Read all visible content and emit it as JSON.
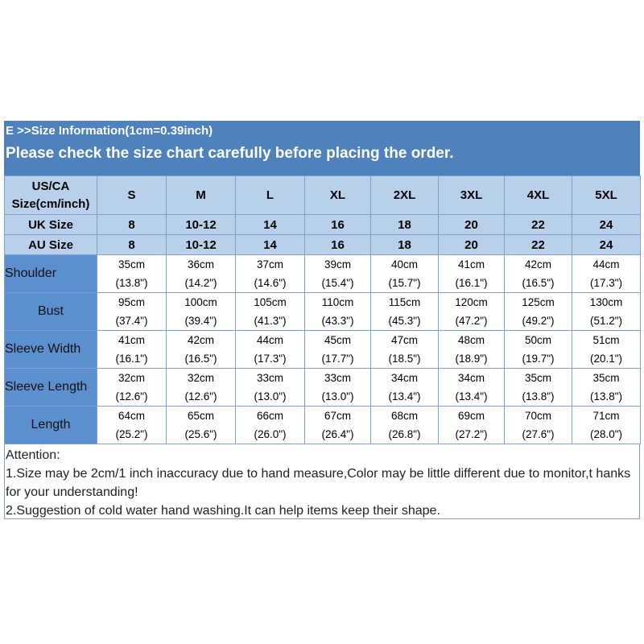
{
  "title": "E >>Size Information(1cm=0.39inch)",
  "subtitle": "Please check the size chart carefully before placing the order.",
  "colors": {
    "band": "#4f81bd",
    "header_cells": "#b9d0ea",
    "label_cells": "#5b8fd0"
  },
  "table": {
    "corner_label": [
      "US/CA",
      "Size(cm/inch)"
    ],
    "sizes": [
      "S",
      "M",
      "L",
      "XL",
      "2XL",
      "3XL",
      "4XL",
      "5XL"
    ],
    "uk": {
      "label": "UK Size",
      "values": [
        "8",
        "10-12",
        "14",
        "16",
        "18",
        "20",
        "22",
        "24"
      ]
    },
    "au": {
      "label": "AU Size",
      "values": [
        "8",
        "10-12",
        "14",
        "16",
        "18",
        "20",
        "22",
        "24"
      ]
    },
    "rows": [
      {
        "label": "Shoulder",
        "cm": [
          "35cm",
          "36cm",
          "37cm",
          "39cm",
          "40cm",
          "41cm",
          "42cm",
          "44cm"
        ],
        "inch": [
          "(13.8\")",
          "(14.2\")",
          "(14.6\")",
          "(15.4\")",
          "(15.7\")",
          "(16.1\")",
          "(16.5\")",
          "(17.3\")"
        ]
      },
      {
        "label": "Bust",
        "cm": [
          "95cm",
          "100cm",
          "105cm",
          "110cm",
          "115cm",
          "120cm",
          "125cm",
          "130cm"
        ],
        "inch": [
          "(37.4\")",
          "(39.4\")",
          "(41.3\")",
          "(43.3\")",
          "(45.3\")",
          "(47.2\")",
          "(49.2\")",
          "(51.2\")"
        ]
      },
      {
        "label": "Sleeve Width",
        "cm": [
          "41cm",
          "42cm",
          "44cm",
          "45cm",
          "47cm",
          "48cm",
          "50cm",
          "51cm"
        ],
        "inch": [
          "(16.1\")",
          "(16.5\")",
          "(17.3\")",
          "(17.7\")",
          "(18.5\")",
          "(18.9\")",
          "(19.7\")",
          "(20.1\")"
        ]
      },
      {
        "label": "Sleeve Length",
        "cm": [
          "32cm",
          "32cm",
          "33cm",
          "33cm",
          "34cm",
          "34cm",
          "35cm",
          "35cm"
        ],
        "inch": [
          "(12.6\")",
          "(12.6\")",
          "(13.0\")",
          "(13.0\")",
          "(13.4\")",
          "(13.4\")",
          "(13.8\")",
          "(13.8\")"
        ]
      },
      {
        "label": "Length",
        "cm": [
          "64cm",
          "65cm",
          "66cm",
          "67cm",
          "68cm",
          "69cm",
          "70cm",
          "71cm"
        ],
        "inch": [
          "(25.2\")",
          "(25.6\")",
          "(26.0\")",
          "(26.4\")",
          "(26.8\")",
          "(27.2\")",
          "(27.6\")",
          "(28.0\")"
        ]
      }
    ]
  },
  "notes": {
    "heading": "Attention:",
    "line1": "1.Size may be 2cm/1 inch inaccuracy due to hand measure,Color may be little different due to monitor,t hanks for your understanding!",
    "line2": "2.Suggestion of cold water hand washing.It can help items keep their shape."
  }
}
